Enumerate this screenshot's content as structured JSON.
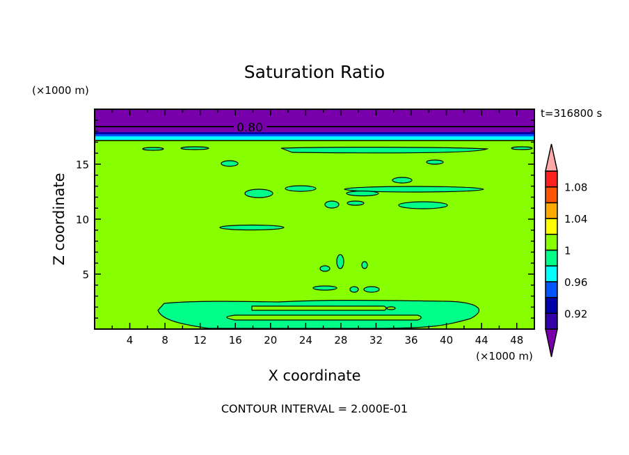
{
  "chart_data": {
    "type": "heatmap",
    "subtype": "filled-contour",
    "title": "Saturation Ratio",
    "xlabel": "X coordinate",
    "ylabel": "Z coordinate",
    "x_unit": "(×1000 m)",
    "y_unit": "(×1000 m)",
    "xlim": [
      0,
      50
    ],
    "ylim": [
      0,
      20
    ],
    "x_ticks": [
      4,
      8,
      12,
      16,
      20,
      24,
      28,
      32,
      36,
      40,
      44,
      48
    ],
    "y_ticks": [
      5,
      10,
      15
    ],
    "time_label": "t=316800 s",
    "contour_label": "0.80",
    "footer": "CONTOUR INTERVAL = 2.000E-01",
    "colorbar": {
      "levels": [
        0.9,
        0.92,
        0.94,
        0.96,
        0.98,
        1.0,
        1.02,
        1.04,
        1.06,
        1.08,
        1.1
      ],
      "tick_labels": [
        "0.92",
        "0.96",
        "1",
        "1.04",
        "1.08"
      ],
      "tick_values": [
        0.92,
        0.96,
        1.0,
        1.04,
        1.08
      ],
      "colors": [
        "#3300aa",
        "#0000aa",
        "#0055ff",
        "#00ffff",
        "#00ff88",
        "#88ff00",
        "#ffff00",
        "#ffaa00",
        "#ff5500",
        "#ff2020"
      ],
      "under_color": "#7700aa",
      "over_color": "#ffaaaa"
    },
    "dominant_value_range": [
      1.0,
      1.02
    ],
    "grid": false
  }
}
